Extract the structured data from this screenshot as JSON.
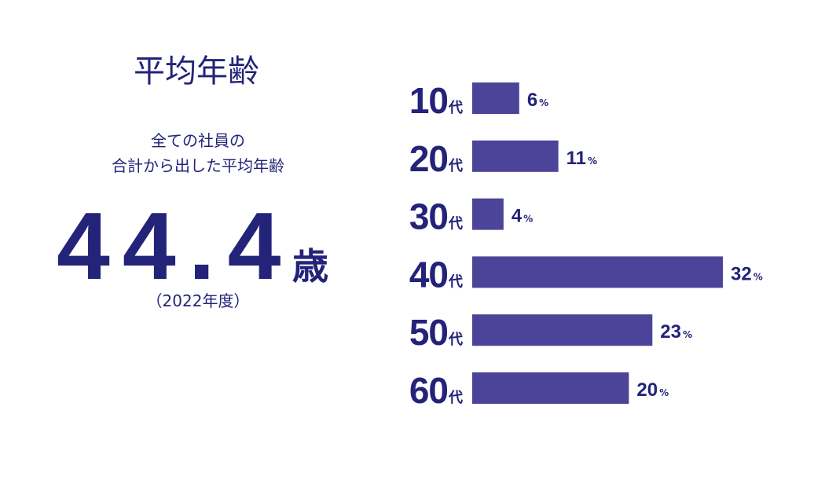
{
  "summary": {
    "title": "平均年齢",
    "description": [
      "全ての社員の",
      "合計から出した平均年齢"
    ],
    "average": "44.4",
    "average_unit": "歳",
    "year_note": "（2022年度）"
  },
  "chart_data": {
    "type": "hbar",
    "categories": [
      "10",
      "20",
      "30",
      "40",
      "50",
      "60"
    ],
    "category_suffix": "代",
    "values": [
      6,
      11,
      4,
      32,
      23,
      20
    ],
    "unit": "%",
    "color": "#4b4499",
    "xlim": [
      0,
      32
    ]
  }
}
